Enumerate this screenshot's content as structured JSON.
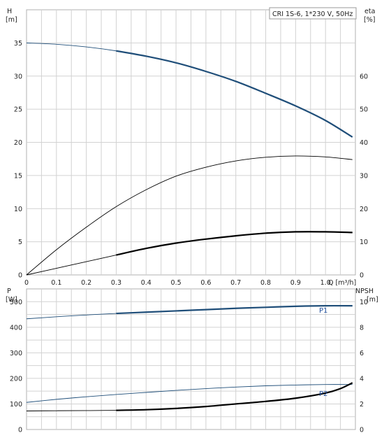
{
  "chart_data": [
    {
      "type": "line",
      "title": "CRI 1S-6, 1*230 V, 50Hz",
      "xlabel": "Q [m³/h]",
      "xlim": [
        0,
        1.1
      ],
      "xticks": [
        "0",
        "0.1",
        "0.2",
        "0.3",
        "0.4",
        "0.5",
        "0.6",
        "0.7",
        "0.8",
        "0.9",
        "1.0"
      ],
      "ylabel_left": "H\n[m]",
      "ylabel_left_lines": [
        "H",
        "[m]"
      ],
      "ylim_left": [
        0,
        40
      ],
      "yticks_left": [
        "0",
        "5",
        "10",
        "15",
        "20",
        "25",
        "30",
        "35"
      ],
      "ylabel_right": "eta\n[%]",
      "ylabel_right_lines": [
        "eta",
        "[%]"
      ],
      "ylim_right": [
        0,
        80
      ],
      "yticks_right": [
        "0",
        "10",
        "20",
        "30",
        "40",
        "50",
        "60"
      ],
      "grid": true,
      "series": [
        {
          "axis": "left",
          "color": "#1f4e79",
          "x": [
            0,
            0.1,
            0.2,
            0.3,
            0.4,
            0.5,
            0.6,
            0.7,
            0.8,
            0.9,
            1.0,
            1.09
          ],
          "y": [
            35.0,
            34.8,
            34.4,
            33.8,
            33.0,
            32.0,
            30.7,
            29.2,
            27.4,
            25.5,
            23.3,
            20.8
          ],
          "bold_from": 0.3
        },
        {
          "axis": "right",
          "color": "#000000",
          "x": [
            0,
            0.1,
            0.2,
            0.3,
            0.4,
            0.5,
            0.6,
            0.7,
            0.8,
            0.9,
            1.0,
            1.09
          ],
          "y": [
            0,
            7.6,
            14.4,
            20.6,
            25.7,
            29.8,
            32.5,
            34.4,
            35.5,
            35.9,
            35.6,
            34.8
          ],
          "bold_from": null
        },
        {
          "axis": "left",
          "color": "#000000",
          "x": [
            0,
            0.1,
            0.2,
            0.3,
            0.4,
            0.5,
            0.6,
            0.7,
            0.8,
            0.9,
            1.0,
            1.09
          ],
          "y": [
            0,
            1.0,
            2.0,
            3.0,
            4.0,
            4.8,
            5.4,
            5.9,
            6.3,
            6.5,
            6.5,
            6.4
          ],
          "bold_from": 0.3
        }
      ]
    },
    {
      "type": "line",
      "xlim": [
        0,
        1.1
      ],
      "ylabel_left": "P\n[W]",
      "ylabel_left_lines": [
        "P",
        "[W]"
      ],
      "ylim_left": [
        0,
        550
      ],
      "yticks_left": [
        "0",
        "100",
        "200",
        "300",
        "400",
        "500"
      ],
      "ylabel_right": "NPSH\n[m]",
      "ylabel_right_lines": [
        "NPSH",
        "[m]"
      ],
      "ylim_right": [
        0,
        11
      ],
      "yticks_right": [
        "0",
        "2",
        "4",
        "6",
        "8",
        "10"
      ],
      "grid": true,
      "series": [
        {
          "name": "P1",
          "axis": "left",
          "color": "#1f4e79",
          "x": [
            0,
            0.1,
            0.2,
            0.3,
            0.4,
            0.5,
            0.6,
            0.7,
            0.8,
            0.9,
            1.0,
            1.09
          ],
          "y": [
            433,
            441,
            448,
            454,
            459,
            464,
            469,
            474,
            478,
            482,
            484,
            484
          ],
          "bold_from": 0.3
        },
        {
          "name": "P2",
          "axis": "left",
          "color": "#1f4e79",
          "x": [
            0,
            0.1,
            0.2,
            0.3,
            0.4,
            0.5,
            0.6,
            0.7,
            0.8,
            0.9,
            1.0,
            1.09
          ],
          "y": [
            106,
            118,
            128,
            137,
            145,
            153,
            160,
            166,
            171,
            174,
            176,
            176
          ],
          "bold_from": null
        },
        {
          "axis": "right",
          "color": "#000000",
          "x": [
            0,
            0.1,
            0.2,
            0.3,
            0.4,
            0.5,
            0.6,
            0.7,
            0.8,
            0.9,
            1.0,
            1.05,
            1.09
          ],
          "y": [
            1.45,
            1.47,
            1.48,
            1.5,
            1.55,
            1.65,
            1.8,
            2.0,
            2.2,
            2.45,
            2.85,
            3.2,
            3.65
          ],
          "bold_from": 0.3
        }
      ]
    }
  ]
}
